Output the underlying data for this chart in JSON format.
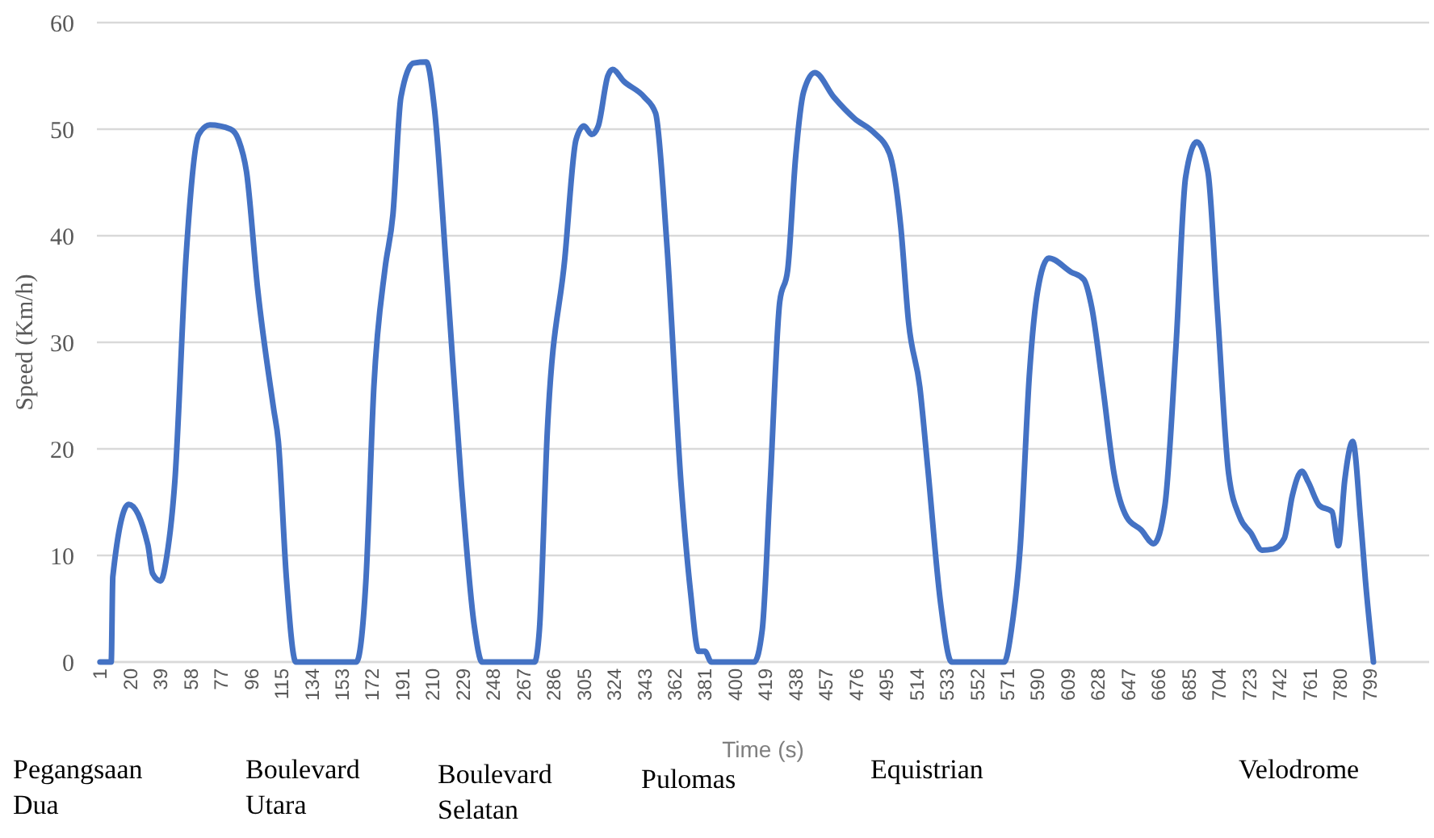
{
  "chart_data": {
    "type": "line",
    "xlabel": "Time (s)",
    "ylabel": "Speed (Km/h)",
    "xlim": [
      -1,
      836
    ],
    "ylim": [
      0,
      60
    ],
    "yticks": [
      0,
      10,
      20,
      30,
      40,
      50,
      60
    ],
    "xticks": [
      1,
      20,
      39,
      58,
      77,
      96,
      115,
      134,
      153,
      172,
      191,
      210,
      229,
      248,
      267,
      286,
      305,
      324,
      343,
      362,
      381,
      400,
      419,
      438,
      457,
      476,
      495,
      514,
      533,
      552,
      571,
      590,
      609,
      628,
      647,
      666,
      685,
      704,
      723,
      742,
      761,
      780,
      799
    ],
    "grid": "y",
    "marker": "none",
    "line_style": "solid",
    "annotations": [
      "Pegangsaan Dua",
      "Boulevard Utara",
      "Boulevard Selatan",
      "Pulomas",
      "Equistrian",
      "Velodrome"
    ],
    "series": [
      {
        "color": "#4472c4",
        "x": [
          1,
          8,
          9,
          19,
          31,
          34,
          39,
          43,
          48,
          55,
          63,
          70,
          83,
          88,
          93,
          100,
          110,
          113,
          118,
          124,
          162,
          168,
          173,
          180,
          185,
          190,
          198,
          206,
          211,
          219,
          228,
          236,
          241,
          274,
          277,
          282,
          293,
          300,
          305,
          310,
          314,
          320,
          323,
          330,
          343,
          350,
          357,
          366,
          372,
          377,
          381,
          385,
          412,
          417,
          422,
          428,
          433,
          438,
          443,
          450,
          462,
          475,
          487,
          497,
          504,
          509,
          516,
          521,
          529,
          536,
          569,
          574,
          579,
          585,
          590,
          597,
          611,
          619,
          624,
          631,
          638,
          646,
          655,
          663,
          670,
          677,
          683,
          690,
          697,
          703,
          710,
          717,
          724,
          731,
          738,
          745,
          750,
          756,
          760,
          767,
          775,
          779,
          783,
          788,
          793,
          796,
          801
        ],
        "values": [
          0,
          0,
          8,
          14.8,
          11,
          8.3,
          7.6,
          10,
          17,
          38,
          49.5,
          50.4,
          50,
          49,
          46,
          35,
          23.8,
          20.7,
          8,
          0,
          0,
          7.6,
          25.8,
          36.9,
          42,
          53,
          56.2,
          56.3,
          52,
          35.9,
          16.7,
          3.5,
          0,
          0,
          3,
          21.7,
          37.9,
          49,
          50.3,
          49.5,
          50.3,
          55,
          55.6,
          54.5,
          53,
          51.5,
          39.4,
          16.7,
          6.5,
          1,
          1,
          0,
          0,
          3,
          16.7,
          33.8,
          36.8,
          47.4,
          53.5,
          55.3,
          53,
          51,
          49.7,
          47.7,
          40.9,
          31.8,
          25.8,
          18.2,
          5.6,
          0,
          0,
          3.5,
          10.6,
          27.3,
          34.8,
          37.9,
          36.6,
          35.9,
          33.3,
          25.8,
          17.7,
          13.6,
          12.4,
          11.1,
          14.7,
          29.8,
          45.5,
          48.8,
          46,
          32.9,
          17.7,
          13.6,
          12.1,
          10.5,
          10.6,
          11.6,
          15.6,
          17.9,
          16.9,
          14.7,
          14.1,
          10.9,
          17.1,
          20.7,
          13.2,
          7.6,
          0
        ]
      }
    ]
  }
}
